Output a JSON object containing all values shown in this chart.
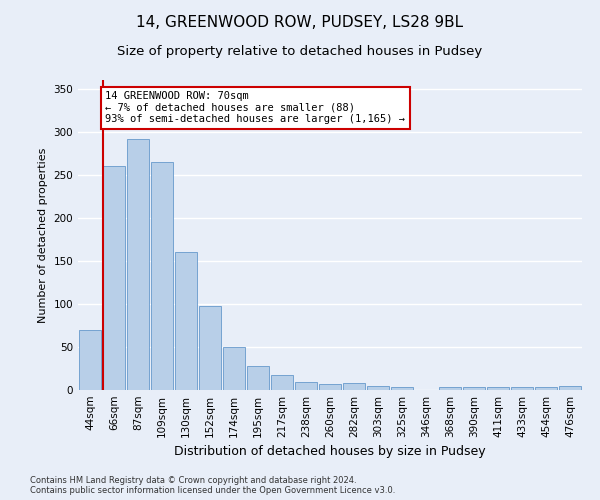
{
  "title": "14, GREENWOOD ROW, PUDSEY, LS28 9BL",
  "subtitle": "Size of property relative to detached houses in Pudsey",
  "xlabel": "Distribution of detached houses by size in Pudsey",
  "ylabel": "Number of detached properties",
  "categories": [
    "44sqm",
    "66sqm",
    "87sqm",
    "109sqm",
    "130sqm",
    "152sqm",
    "174sqm",
    "195sqm",
    "217sqm",
    "238sqm",
    "260sqm",
    "282sqm",
    "303sqm",
    "325sqm",
    "346sqm",
    "368sqm",
    "390sqm",
    "411sqm",
    "433sqm",
    "454sqm",
    "476sqm"
  ],
  "values": [
    70,
    260,
    292,
    265,
    160,
    98,
    50,
    28,
    18,
    9,
    7,
    8,
    5,
    3,
    0,
    4,
    4,
    3,
    4,
    3,
    5
  ],
  "bar_color": "#b8cfe8",
  "bar_edge_color": "#6699cc",
  "red_line_bin_index": 1,
  "annotation_line1": "14 GREENWOOD ROW: 70sqm",
  "annotation_line2": "← 7% of detached houses are smaller (88)",
  "annotation_line3": "93% of semi-detached houses are larger (1,165) →",
  "annotation_box_color": "#ffffff",
  "annotation_box_edge_color": "#cc0000",
  "footnote_line1": "Contains HM Land Registry data © Crown copyright and database right 2024.",
  "footnote_line2": "Contains public sector information licensed under the Open Government Licence v3.0.",
  "ylim": [
    0,
    360
  ],
  "yticks": [
    0,
    50,
    100,
    150,
    200,
    250,
    300,
    350
  ],
  "background_color": "#e8eef8",
  "grid_color": "#ffffff",
  "title_fontsize": 11,
  "subtitle_fontsize": 9.5,
  "xlabel_fontsize": 9,
  "ylabel_fontsize": 8,
  "tick_fontsize": 7.5,
  "annotation_fontsize": 7.5,
  "footnote_fontsize": 6
}
